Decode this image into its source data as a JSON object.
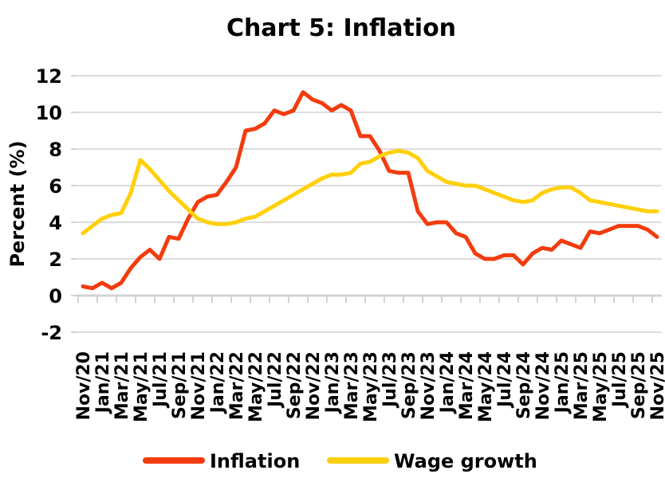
{
  "chart_data": {
    "type": "line",
    "title": "Chart 5: Inflation",
    "xlabel": "",
    "ylabel": "Percent (%)",
    "ylim": [
      -2,
      12
    ],
    "ytick_interval": 2,
    "y_ticks": [
      12,
      10,
      8,
      6,
      4,
      2,
      0,
      -2
    ],
    "grid": true,
    "legend_position": "bottom",
    "x_tick_labels": [
      "Nov/20",
      "Jan/21",
      "Mar/21",
      "May/21",
      "Jul/21",
      "Sep/21",
      "Nov/21",
      "Jan/22",
      "Mar/22",
      "May/22",
      "Jul/22",
      "Sep/22",
      "Nov/22",
      "Jan/23",
      "Mar/23",
      "May/23",
      "Jul/23",
      "Sep/23",
      "Nov/23",
      "Jan/24",
      "Mar/24",
      "May/24",
      "Jul/24",
      "Sep/24",
      "Nov/24",
      "Jan/25",
      "Mar/25",
      "May/25",
      "Jul/25",
      "Sep/25",
      "Nov/25"
    ],
    "x_months": [
      "Nov/20",
      "Dec/20",
      "Jan/21",
      "Feb/21",
      "Mar/21",
      "Apr/21",
      "May/21",
      "Jun/21",
      "Jul/21",
      "Aug/21",
      "Sep/21",
      "Oct/21",
      "Nov/21",
      "Dec/21",
      "Jan/22",
      "Feb/22",
      "Mar/22",
      "Apr/22",
      "May/22",
      "Jun/22",
      "Jul/22",
      "Aug/22",
      "Sep/22",
      "Oct/22",
      "Nov/22",
      "Dec/22",
      "Jan/23",
      "Feb/23",
      "Mar/23",
      "Apr/23",
      "May/23",
      "Jun/23",
      "Jul/23",
      "Aug/23",
      "Sep/23",
      "Oct/23",
      "Nov/23",
      "Dec/23",
      "Jan/24",
      "Feb/24",
      "Mar/24",
      "Apr/24",
      "May/24",
      "Jun/24",
      "Jul/24",
      "Aug/24",
      "Sep/24",
      "Oct/24",
      "Nov/24",
      "Dec/24",
      "Jan/25",
      "Feb/25",
      "Mar/25",
      "Apr/25",
      "May/25",
      "Jun/25",
      "Jul/25",
      "Aug/25",
      "Sep/25",
      "Oct/25",
      "Nov/25"
    ],
    "series": [
      {
        "name": "Inflation",
        "color": "#F23C0F",
        "values": [
          0.5,
          0.4,
          0.7,
          0.4,
          0.7,
          1.5,
          2.1,
          2.5,
          2.0,
          3.2,
          3.1,
          4.2,
          5.1,
          5.4,
          5.5,
          6.2,
          7.0,
          9.0,
          9.1,
          9.4,
          10.1,
          9.9,
          10.1,
          11.1,
          10.7,
          10.5,
          10.1,
          10.4,
          10.1,
          8.7,
          8.7,
          7.9,
          6.8,
          6.7,
          6.7,
          4.6,
          3.9,
          4.0,
          4.0,
          3.4,
          3.2,
          2.3,
          2.0,
          2.0,
          2.2,
          2.2,
          1.7,
          2.3,
          2.6,
          2.5,
          3.0,
          2.8,
          2.6,
          3.5,
          3.4,
          3.6,
          3.8,
          3.8,
          3.8,
          3.6,
          3.2
        ]
      },
      {
        "name": "Wage growth",
        "color": "#FFD00A",
        "values": [
          3.4,
          3.8,
          4.2,
          4.4,
          4.5,
          5.6,
          7.4,
          6.9,
          6.3,
          5.7,
          5.2,
          4.7,
          4.2,
          4.0,
          3.9,
          3.9,
          4.0,
          4.2,
          4.3,
          4.6,
          4.9,
          5.2,
          5.5,
          5.8,
          6.1,
          6.4,
          6.6,
          6.6,
          6.7,
          7.2,
          7.3,
          7.6,
          7.8,
          7.9,
          7.8,
          7.5,
          6.8,
          6.5,
          6.2,
          6.1,
          6.0,
          6.0,
          5.8,
          5.6,
          5.4,
          5.2,
          5.1,
          5.2,
          5.6,
          5.8,
          5.9,
          5.9,
          5.6,
          5.2,
          5.1,
          5.0,
          4.9,
          4.8,
          4.7,
          4.6,
          4.6
        ]
      }
    ],
    "colors": {
      "gridline": "#DCDCDC",
      "axis_line": "#D3D3D3",
      "tick": "#D3D3D3",
      "text": "#000000",
      "background": "#FFFFFF"
    }
  }
}
